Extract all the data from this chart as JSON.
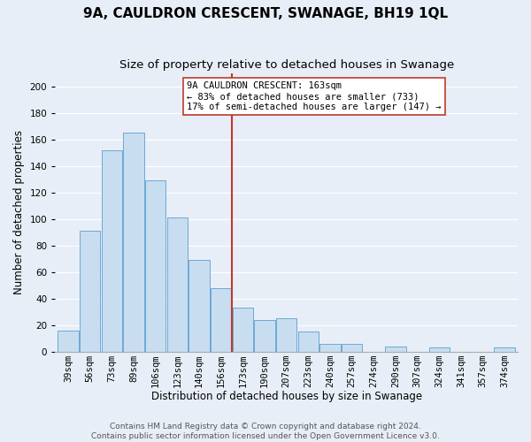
{
  "title": "9A, CAULDRON CRESCENT, SWANAGE, BH19 1QL",
  "subtitle": "Size of property relative to detached houses in Swanage",
  "xlabel": "Distribution of detached houses by size in Swanage",
  "ylabel": "Number of detached properties",
  "categories": [
    "39sqm",
    "56sqm",
    "73sqm",
    "89sqm",
    "106sqm",
    "123sqm",
    "140sqm",
    "156sqm",
    "173sqm",
    "190sqm",
    "207sqm",
    "223sqm",
    "240sqm",
    "257sqm",
    "274sqm",
    "290sqm",
    "307sqm",
    "324sqm",
    "341sqm",
    "357sqm",
    "374sqm"
  ],
  "values": [
    16,
    91,
    152,
    165,
    129,
    101,
    69,
    48,
    33,
    24,
    25,
    15,
    6,
    6,
    0,
    4,
    0,
    3,
    0,
    0,
    3
  ],
  "bar_color": "#c9ddf0",
  "bar_edge_color": "#6aaad4",
  "vline_x": 7.5,
  "vline_color": "#c0392b",
  "ylim": [
    0,
    210
  ],
  "yticks": [
    0,
    20,
    40,
    60,
    80,
    100,
    120,
    140,
    160,
    180,
    200
  ],
  "annotation_title": "9A CAULDRON CRESCENT: 163sqm",
  "annotation_line1": "← 83% of detached houses are smaller (733)",
  "annotation_line2": "17% of semi-detached houses are larger (147) →",
  "footer_line1": "Contains HM Land Registry data © Crown copyright and database right 2024.",
  "footer_line2": "Contains public sector information licensed under the Open Government Licence v3.0.",
  "background_color": "#e8eef7",
  "plot_background": "#e8eef7",
  "grid_color": "#ffffff",
  "title_fontsize": 11,
  "subtitle_fontsize": 9.5,
  "axis_label_fontsize": 8.5,
  "tick_fontsize": 7.5,
  "footer_fontsize": 6.5,
  "annotation_fontsize": 7.5
}
